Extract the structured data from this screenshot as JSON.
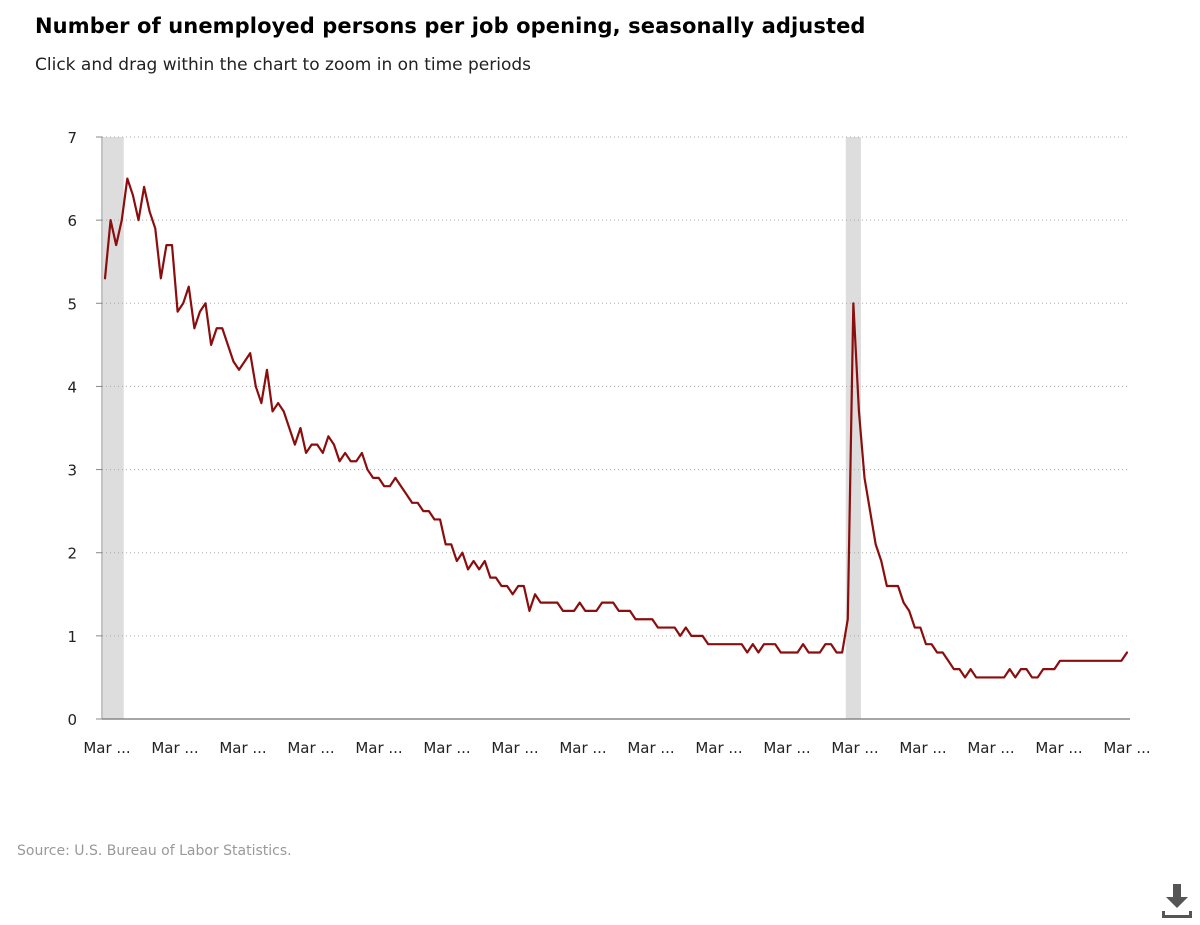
{
  "chart_data": {
    "type": "line",
    "title": "Number of unemployed persons per job opening, seasonally adjusted",
    "subtitle": "Click and drag within the chart to zoom in on time periods",
    "xlabel": "",
    "ylabel": "",
    "ylim": [
      0,
      7
    ],
    "yticks": [
      0,
      1,
      2,
      3,
      4,
      5,
      6,
      7
    ],
    "grid": true,
    "x_tick_labels": [
      "Mar ...",
      "Mar ...",
      "Mar ...",
      "Mar ...",
      "Mar ...",
      "Mar ...",
      "Mar ...",
      "Mar ...",
      "Mar ...",
      "Mar ...",
      "Mar ...",
      "Mar ...",
      "Mar ...",
      "Mar ...",
      "Mar ...",
      "Mar ..."
    ],
    "recession_bands": [
      {
        "start_index": 0,
        "end_index": 3
      },
      {
        "start_index": 133,
        "end_index": 135
      }
    ],
    "series": [
      {
        "name": "Number of unemployed persons per job opening",
        "color": "#8b0e0e",
        "values": [
          5.3,
          6.0,
          5.7,
          6.0,
          6.5,
          6.3,
          6.0,
          6.4,
          6.1,
          5.9,
          5.3,
          5.7,
          5.7,
          4.9,
          5.0,
          5.2,
          4.7,
          4.9,
          5.0,
          4.5,
          4.7,
          4.7,
          4.5,
          4.3,
          4.2,
          4.3,
          4.4,
          4.0,
          3.8,
          4.2,
          3.7,
          3.8,
          3.7,
          3.5,
          3.3,
          3.5,
          3.2,
          3.3,
          3.3,
          3.2,
          3.4,
          3.3,
          3.1,
          3.2,
          3.1,
          3.1,
          3.2,
          3.0,
          2.9,
          2.9,
          2.8,
          2.8,
          2.9,
          2.8,
          2.7,
          2.6,
          2.6,
          2.5,
          2.5,
          2.4,
          2.4,
          2.1,
          2.1,
          1.9,
          2.0,
          1.8,
          1.9,
          1.8,
          1.9,
          1.7,
          1.7,
          1.6,
          1.6,
          1.5,
          1.6,
          1.6,
          1.3,
          1.5,
          1.4,
          1.4,
          1.4,
          1.4,
          1.3,
          1.3,
          1.3,
          1.4,
          1.3,
          1.3,
          1.3,
          1.4,
          1.4,
          1.4,
          1.3,
          1.3,
          1.3,
          1.2,
          1.2,
          1.2,
          1.2,
          1.1,
          1.1,
          1.1,
          1.1,
          1.0,
          1.1,
          1.0,
          1.0,
          1.0,
          0.9,
          0.9,
          0.9,
          0.9,
          0.9,
          0.9,
          0.9,
          0.8,
          0.9,
          0.8,
          0.9,
          0.9,
          0.9,
          0.8,
          0.8,
          0.8,
          0.8,
          0.9,
          0.8,
          0.8,
          0.8,
          0.9,
          0.9,
          0.8,
          0.8,
          1.2,
          5.0,
          3.7,
          2.9,
          2.5,
          2.1,
          1.9,
          1.6,
          1.6,
          1.6,
          1.4,
          1.3,
          1.1,
          1.1,
          0.9,
          0.9,
          0.8,
          0.8,
          0.7,
          0.6,
          0.6,
          0.5,
          0.6,
          0.5,
          0.5,
          0.5,
          0.5,
          0.5,
          0.5,
          0.6,
          0.5,
          0.6,
          0.6,
          0.5,
          0.5,
          0.6,
          0.6,
          0.6,
          0.7,
          0.7,
          0.7,
          0.7,
          0.7,
          0.7,
          0.7,
          0.7,
          0.7,
          0.7,
          0.7,
          0.7,
          0.8
        ]
      }
    ],
    "source": "Source: U.S. Bureau of Labor Statistics."
  },
  "colors": {
    "line": "#8b0e0e",
    "recession_band": "#dddddd",
    "grid": "#aaaaaa",
    "axis": "#888888",
    "download_icon": "#555555"
  },
  "icons": {
    "download": "download-icon"
  }
}
